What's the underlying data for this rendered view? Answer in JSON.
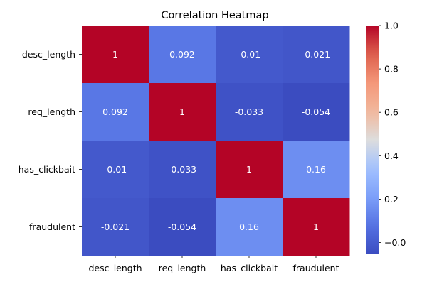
{
  "chart_data": {
    "type": "heatmap",
    "title": "Correlation Heatmap",
    "rows": [
      "desc_length",
      "req_length",
      "has_clickbait",
      "fraudulent"
    ],
    "columns": [
      "desc_length",
      "req_length",
      "has_clickbait",
      "fraudulent"
    ],
    "values": [
      [
        1,
        0.092,
        -0.01,
        -0.021
      ],
      [
        0.092,
        1,
        -0.033,
        -0.054
      ],
      [
        -0.01,
        -0.033,
        1,
        0.16
      ],
      [
        -0.021,
        -0.054,
        0.16,
        1
      ]
    ],
    "annotations": [
      [
        "1",
        "0.092",
        "-0.01",
        "-0.021"
      ],
      [
        "0.092",
        "1",
        "-0.033",
        "-0.054"
      ],
      [
        "-0.01",
        "-0.033",
        "1",
        "0.16"
      ],
      [
        "-0.021",
        "-0.054",
        "0.16",
        "1"
      ]
    ],
    "colormap": "coolwarm",
    "vmin": -0.054,
    "vmax": 1,
    "colorbar": {
      "ticks": [
        0.0,
        0.2,
        0.4,
        0.6,
        0.8,
        1.0
      ],
      "tick_labels": [
        "0.0",
        "0.2",
        "0.4",
        "0.6",
        "0.8",
        "1.0"
      ],
      "tick_display": [
        "−0.0",
        "0.2",
        "0.4",
        "0.6",
        "0.8",
        "1.0"
      ]
    }
  }
}
